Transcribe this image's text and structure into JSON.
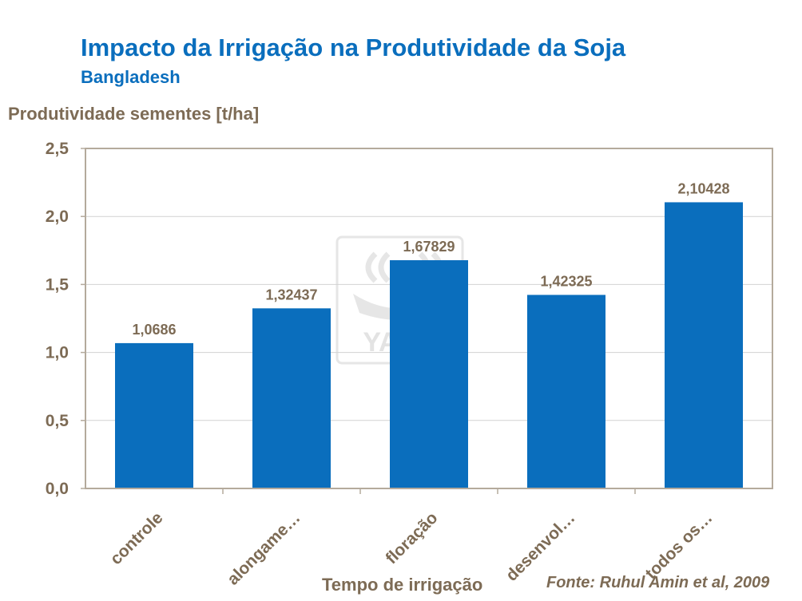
{
  "colors": {
    "title": "#0a6ebd",
    "bar": "#0a6ebd",
    "text": "#7d6b55",
    "grid": "#d2d2d2",
    "axis": "#b4aa9c",
    "watermark": "#e3e3e3"
  },
  "watermark": {
    "text": "YARA",
    "icon": "yara-viking-ship-logo"
  },
  "chart_data": {
    "type": "bar",
    "title": "Impacto da Irrigação na Produtividade da Soja",
    "subtitle": "Bangladesh",
    "ylabel": "Produtividade sementes [t/ha]",
    "xlabel": "Tempo de irrigação",
    "source": "Fonte: Ruhul Amin et al, 2009",
    "categories": [
      "controle",
      "alongame…",
      "floração",
      "desenvol…",
      "todos os…"
    ],
    "values": [
      1.0686,
      1.32437,
      1.67829,
      1.42325,
      2.10428
    ],
    "value_labels": [
      "1,0686",
      "1,32437",
      "1,67829",
      "1,42325",
      "2,10428"
    ],
    "yticks": [
      0,
      0.5,
      1.0,
      1.5,
      2.0,
      2.5
    ],
    "ytick_labels": [
      "0,0",
      "0,5",
      "1,0",
      "1,5",
      "2,0",
      "2,5"
    ],
    "ylim": [
      0,
      2.5
    ],
    "grid": true,
    "legend": "none"
  }
}
